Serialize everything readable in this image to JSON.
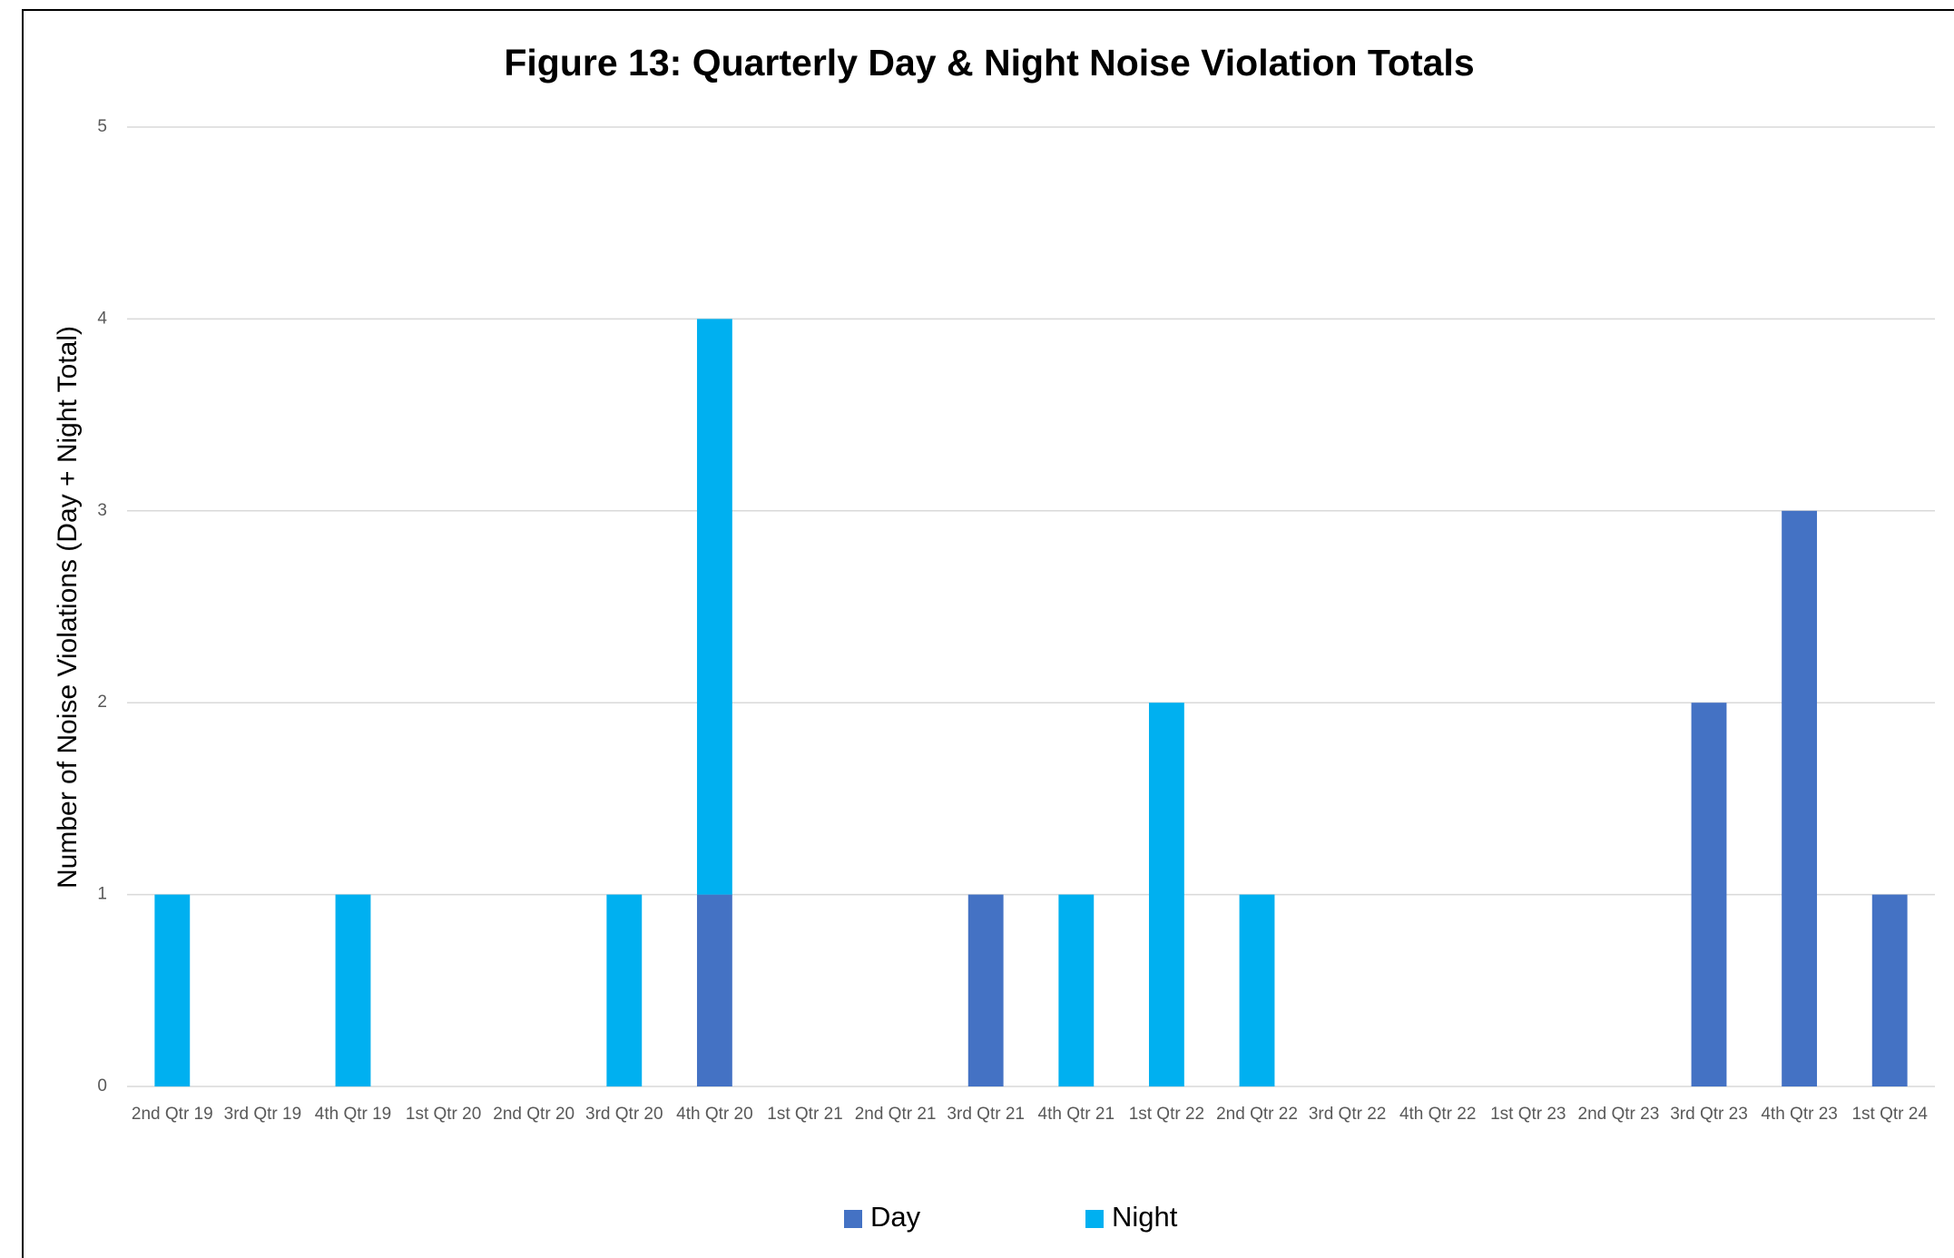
{
  "chart_data": {
    "type": "stacked_bar",
    "title": "Figure 13: Quarterly Day & Night Noise Violation Totals",
    "y_label": "Number of Noise Violations (Day + Night Total)",
    "categories": [
      "2nd Qtr 19",
      "3rd Qtr 19",
      "4th Qtr 19",
      "1st Qtr 20",
      "2nd Qtr 20",
      "3rd Qtr 20",
      "4th Qtr 20",
      "1st Qtr 21",
      "2nd Qtr 21",
      "3rd Qtr 21",
      "4th Qtr 21",
      "1st Qtr 22",
      "2nd Qtr 22",
      "3rd Qtr 22",
      "4th Qtr 22",
      "1st Qtr 23",
      "2nd Qtr 23",
      "3rd Qtr 23",
      "4th Qtr 23",
      "1st Qtr 24"
    ],
    "series": [
      {
        "name": "Day",
        "color": "#4472c4",
        "values": [
          0,
          0,
          0,
          0,
          0,
          0,
          1,
          0,
          0,
          1,
          0,
          0,
          0,
          0,
          0,
          0,
          0,
          2,
          3,
          1
        ]
      },
      {
        "name": "Night",
        "color": "#00b0f0",
        "values": [
          1,
          0,
          1,
          0,
          0,
          1,
          3,
          0,
          0,
          0,
          1,
          2,
          1,
          0,
          0,
          0,
          0,
          0,
          0,
          0
        ]
      }
    ],
    "ylim": [
      0,
      5
    ],
    "yticks": [
      0,
      1,
      2,
      3,
      4,
      5
    ],
    "grid": true,
    "legend": "bottom"
  }
}
